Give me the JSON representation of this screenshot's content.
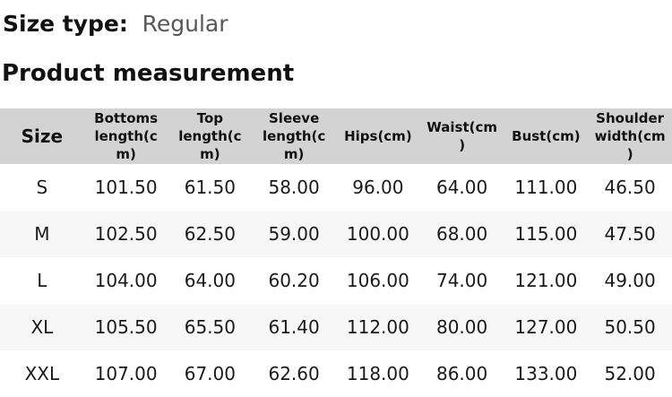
{
  "header": {
    "size_type_label": "Size type:",
    "size_type_value": "Regular",
    "section_title": "Product measurement"
  },
  "measurement_table": {
    "columns": [
      "Size",
      "Bottoms\nlength(c\nm)",
      "Top\nlength(c\nm)",
      "Sleeve\nlength(c\nm)",
      "Hips(cm)",
      "Waist(cm\n)",
      "Bust(cm)",
      "Shoulder\nwidth(cm\n)"
    ],
    "rows": [
      {
        "size": "S",
        "values": [
          "101.50",
          "61.50",
          "58.00",
          "96.00",
          "64.00",
          "111.00",
          "46.50"
        ]
      },
      {
        "size": "M",
        "values": [
          "102.50",
          "62.50",
          "59.00",
          "100.00",
          "68.00",
          "115.00",
          "47.50"
        ]
      },
      {
        "size": "L",
        "values": [
          "104.00",
          "64.00",
          "60.20",
          "106.00",
          "74.00",
          "121.00",
          "49.00"
        ]
      },
      {
        "size": "XL",
        "values": [
          "105.50",
          "65.50",
          "61.40",
          "112.00",
          "80.00",
          "127.00",
          "50.50"
        ]
      },
      {
        "size": "XXL",
        "values": [
          "107.00",
          "67.00",
          "62.60",
          "118.00",
          "86.00",
          "133.00",
          "52.00"
        ]
      }
    ]
  },
  "colors": {
    "header_bg": "#d3d3d3",
    "stripe_bg": "#f7f7f7",
    "muted_text": "#575757",
    "text": "#1a1a1a"
  }
}
